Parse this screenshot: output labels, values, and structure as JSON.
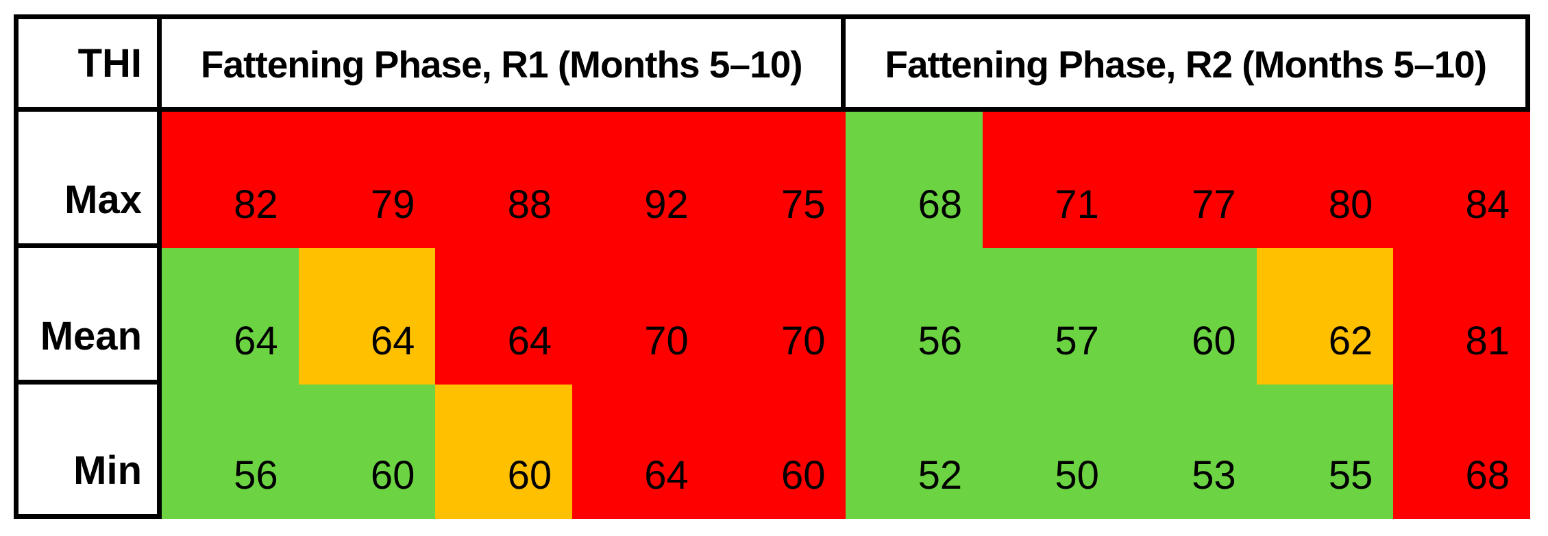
{
  "chart_data": {
    "type": "heatmap",
    "title": "THI",
    "row_categories": [
      "Max",
      "Mean",
      "Min"
    ],
    "column_groups": [
      {
        "label": "Fattening Phase, R1 (Months 5–10)",
        "n_columns": 5
      },
      {
        "label": "Fattening Phase, R2 (Months 5–10)",
        "n_columns": 5
      }
    ],
    "series": [
      {
        "name": "Max",
        "R1": [
          82,
          79,
          88,
          92,
          75
        ],
        "R2": [
          68,
          71,
          77,
          80,
          84
        ]
      },
      {
        "name": "Mean",
        "R1": [
          64,
          64,
          64,
          70,
          70
        ],
        "R2": [
          56,
          57,
          60,
          62,
          81
        ]
      },
      {
        "name": "Min",
        "R1": [
          56,
          60,
          60,
          64,
          60
        ],
        "R2": [
          52,
          50,
          53,
          55,
          68
        ]
      }
    ],
    "cell_statuses": [
      {
        "name": "Max",
        "R1": [
          "red",
          "red",
          "red",
          "red",
          "red"
        ],
        "R2": [
          "green",
          "red",
          "red",
          "red",
          "red"
        ]
      },
      {
        "name": "Mean",
        "R1": [
          "green",
          "amber",
          "red",
          "red",
          "red"
        ],
        "R2": [
          "green",
          "green",
          "green",
          "amber",
          "red"
        ]
      },
      {
        "name": "Min",
        "R1": [
          "green",
          "green",
          "amber",
          "red",
          "red"
        ],
        "R2": [
          "green",
          "green",
          "green",
          "green",
          "red"
        ]
      }
    ],
    "status_colors": {
      "red": "#FF0000",
      "green": "#6CD343",
      "amber": "#FFC000"
    },
    "legend": "none",
    "grid": "borders only on header row and THI label column"
  },
  "table": {
    "corner_label": "THI",
    "sections": [
      {
        "header": "Fattening Phase, R1 (Months 5–10)"
      },
      {
        "header": "Fattening Phase, R2 (Months 5–10)"
      }
    ],
    "colors": {
      "red": "#FF0000",
      "green": "#6CD343",
      "amber": "#FFC000"
    },
    "rows": [
      {
        "label": "Max",
        "cells": [
          {
            "v": "82",
            "s": "red"
          },
          {
            "v": "79",
            "s": "red"
          },
          {
            "v": "88",
            "s": "red"
          },
          {
            "v": "92",
            "s": "red"
          },
          {
            "v": "75",
            "s": "red"
          },
          {
            "v": "68",
            "s": "green"
          },
          {
            "v": "71",
            "s": "red"
          },
          {
            "v": "77",
            "s": "red"
          },
          {
            "v": "80",
            "s": "red"
          },
          {
            "v": "84",
            "s": "red"
          }
        ]
      },
      {
        "label": "Mean",
        "cells": [
          {
            "v": "64",
            "s": "green"
          },
          {
            "v": "64",
            "s": "amber"
          },
          {
            "v": "64",
            "s": "red"
          },
          {
            "v": "70",
            "s": "red"
          },
          {
            "v": "70",
            "s": "red"
          },
          {
            "v": "56",
            "s": "green"
          },
          {
            "v": "57",
            "s": "green"
          },
          {
            "v": "60",
            "s": "green"
          },
          {
            "v": "62",
            "s": "amber"
          },
          {
            "v": "81",
            "s": "red"
          }
        ]
      },
      {
        "label": "Min",
        "cells": [
          {
            "v": "56",
            "s": "green"
          },
          {
            "v": "60",
            "s": "green"
          },
          {
            "v": "60",
            "s": "amber"
          },
          {
            "v": "64",
            "s": "red"
          },
          {
            "v": "60",
            "s": "red"
          },
          {
            "v": "52",
            "s": "green"
          },
          {
            "v": "50",
            "s": "green"
          },
          {
            "v": "53",
            "s": "green"
          },
          {
            "v": "55",
            "s": "green"
          },
          {
            "v": "68",
            "s": "red"
          }
        ]
      }
    ]
  }
}
